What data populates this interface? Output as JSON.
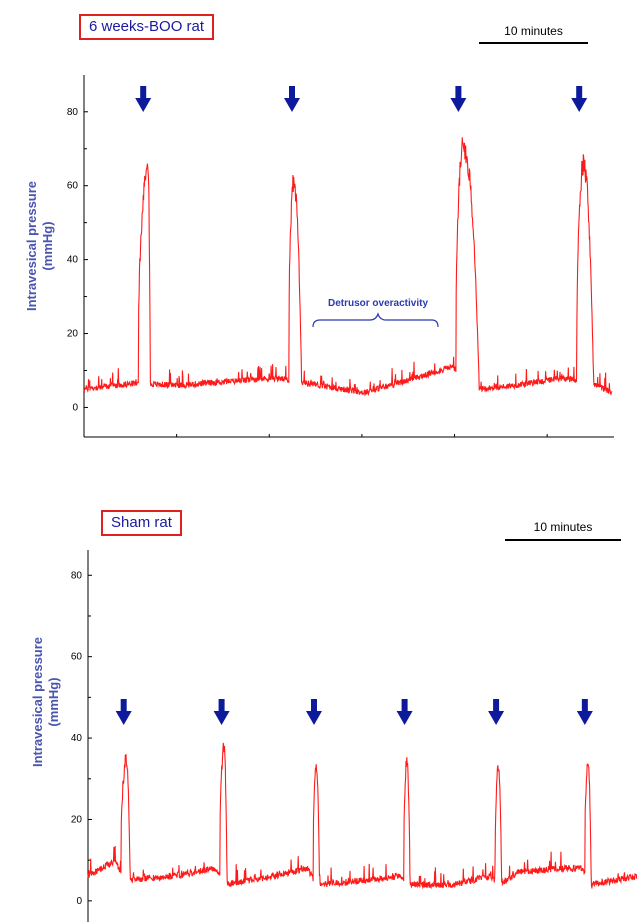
{
  "chart_data": [
    {
      "type": "line",
      "title": "6 weeks-BOO rat",
      "ylabel": "Intravesical pressure (mmHg)",
      "ylabel_line1": "Intravesical pressure",
      "ylabel_line2": "(mmHg)",
      "ylim": [
        -8,
        84
      ],
      "yticks": [
        "0",
        "20",
        "40",
        "60",
        "80"
      ],
      "ytick_values": [
        0,
        20,
        40,
        60,
        80
      ],
      "scale_bar": "10 minutes",
      "scale_bar_minutes": 10,
      "duration_minutes": 66,
      "annotation": "Detrusor overactivity",
      "arrows_at_minutes": [
        7.4,
        26,
        46.8,
        61.9
      ],
      "baseline": [
        [
          0,
          5
        ],
        [
          6,
          6.5
        ],
        [
          12,
          6
        ],
        [
          18,
          7
        ],
        [
          24,
          8
        ],
        [
          28,
          6.5
        ],
        [
          35,
          4
        ],
        [
          40,
          7
        ],
        [
          46,
          11
        ],
        [
          49.6,
          5
        ],
        [
          54,
          6
        ],
        [
          60,
          8
        ],
        [
          64,
          6
        ],
        [
          66,
          4
        ]
      ],
      "voids": [
        {
          "start": 6.8,
          "peak_minute": 7.9,
          "peak": 71,
          "end": 8.3
        },
        {
          "start": 25.6,
          "peak_minute": 26.1,
          "peak": 64,
          "end": 27.2
        },
        {
          "start": 46.5,
          "peak_minute": 47.2,
          "peak": 74,
          "end": 49.4
        },
        {
          "start": 61.6,
          "peak_minute": 62.3,
          "peak": 69,
          "end": 63.7
        }
      ],
      "color": "#ff1a1a"
    },
    {
      "type": "line",
      "title": "Sham rat",
      "ylabel": "Intravesical pressure (mmHg)",
      "ylabel_line1": "Intravesical pressure",
      "ylabel_line2": "(mmHg)",
      "ylim": [
        -2,
        84
      ],
      "yticks": [
        "0",
        "20",
        "40",
        "60",
        "80"
      ],
      "ytick_values": [
        0,
        20,
        40,
        60,
        80
      ],
      "scale_bar": "10 minutes",
      "scale_bar_minutes": 10,
      "duration_minutes": 60,
      "arrows_at_minutes": [
        3.9,
        14.6,
        24.7,
        34.6,
        44.6,
        54.3
      ],
      "baseline": [
        [
          0,
          6
        ],
        [
          3,
          10
        ],
        [
          4,
          5
        ],
        [
          9,
          6
        ],
        [
          14,
          8
        ],
        [
          15,
          4
        ],
        [
          20,
          6
        ],
        [
          24,
          8
        ],
        [
          25,
          4
        ],
        [
          30,
          5
        ],
        [
          34,
          6
        ],
        [
          35,
          4
        ],
        [
          40,
          4
        ],
        [
          44,
          6
        ],
        [
          45,
          4
        ],
        [
          47,
          7
        ],
        [
          52,
          8
        ],
        [
          54,
          8
        ],
        [
          55,
          4
        ],
        [
          60,
          6
        ]
      ],
      "voids": [
        {
          "start": 3.6,
          "peak_minute": 4.1,
          "peak": 37,
          "end": 4.6
        },
        {
          "start": 14.4,
          "peak_minute": 14.8,
          "peak": 40,
          "end": 15.2
        },
        {
          "start": 24.6,
          "peak_minute": 24.9,
          "peak": 35,
          "end": 25.3
        },
        {
          "start": 34.5,
          "peak_minute": 34.8,
          "peak": 36,
          "end": 35.2
        },
        {
          "start": 44.5,
          "peak_minute": 44.8,
          "peak": 35,
          "end": 45.2
        },
        {
          "start": 54.3,
          "peak_minute": 54.6,
          "peak": 36,
          "end": 55.0
        }
      ],
      "color": "#ff1a1a"
    }
  ],
  "arrow_color": "#0d1a9c",
  "title_border_color": "#e02020",
  "title_text_color": "#1a1aa0",
  "ylabel_color": "#4a55b0"
}
